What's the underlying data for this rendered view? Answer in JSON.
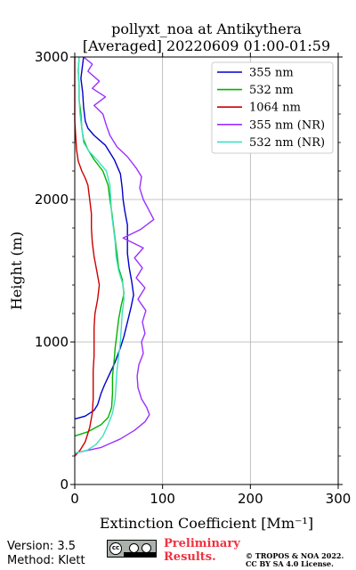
{
  "chart_data": {
    "type": "line",
    "title": "pollyxt_noa at Antikythera",
    "subtitle": "[Averaged] 20220609 01:00-01:59",
    "xlabel": "Extinction Coefficient [Mm⁻¹]",
    "ylabel": "Height (m)",
    "xlim": [
      0,
      300
    ],
    "ylim": [
      0,
      3000
    ],
    "xticks": [
      "0",
      "100",
      "200",
      "300"
    ],
    "yticks": [
      "0",
      "1000",
      "2000",
      "3000"
    ],
    "grid": true,
    "legend_position": "top-right",
    "series": [
      {
        "name": "355 nm",
        "color": "#0000cc",
        "points": [
          [
            0,
            460
          ],
          [
            12,
            480
          ],
          [
            22,
            520
          ],
          [
            26,
            560
          ],
          [
            30,
            640
          ],
          [
            34,
            700
          ],
          [
            40,
            780
          ],
          [
            46,
            860
          ],
          [
            52,
            960
          ],
          [
            56,
            1040
          ],
          [
            60,
            1140
          ],
          [
            64,
            1240
          ],
          [
            67,
            1330
          ],
          [
            65,
            1420
          ],
          [
            62,
            1520
          ],
          [
            60,
            1620
          ],
          [
            60,
            1720
          ],
          [
            60,
            1820
          ],
          [
            57,
            1920
          ],
          [
            55,
            2000
          ],
          [
            54,
            2080
          ],
          [
            52,
            2180
          ],
          [
            45,
            2280
          ],
          [
            35,
            2380
          ],
          [
            22,
            2450
          ],
          [
            15,
            2500
          ],
          [
            12,
            2550
          ],
          [
            10,
            2650
          ],
          [
            9,
            2750
          ],
          [
            7,
            2850
          ],
          [
            9,
            2950
          ],
          [
            10,
            3000
          ]
        ]
      },
      {
        "name": "532 nm",
        "color": "#00b300",
        "points": [
          [
            0,
            340
          ],
          [
            15,
            370
          ],
          [
            30,
            420
          ],
          [
            38,
            470
          ],
          [
            42,
            540
          ],
          [
            43,
            640
          ],
          [
            43,
            760
          ],
          [
            45,
            880
          ],
          [
            46,
            960
          ],
          [
            48,
            1060
          ],
          [
            50,
            1160
          ],
          [
            53,
            1260
          ],
          [
            56,
            1340
          ],
          [
            54,
            1440
          ],
          [
            50,
            1520
          ],
          [
            48,
            1620
          ],
          [
            46,
            1720
          ],
          [
            44,
            1820
          ],
          [
            42,
            1920
          ],
          [
            40,
            2000
          ],
          [
            38,
            2100
          ],
          [
            32,
            2200
          ],
          [
            22,
            2280
          ],
          [
            15,
            2350
          ],
          [
            10,
            2420
          ],
          [
            8,
            2500
          ],
          [
            7,
            2600
          ],
          [
            5,
            2700
          ],
          [
            5,
            2800
          ],
          [
            4,
            2900
          ],
          [
            5,
            3000
          ]
        ]
      },
      {
        "name": "1064 nm",
        "color": "#cc0000",
        "points": [
          [
            0,
            200
          ],
          [
            6,
            240
          ],
          [
            12,
            300
          ],
          [
            17,
            400
          ],
          [
            20,
            500
          ],
          [
            21,
            600
          ],
          [
            21,
            700
          ],
          [
            21,
            800
          ],
          [
            22,
            900
          ],
          [
            22,
            1000
          ],
          [
            22,
            1100
          ],
          [
            23,
            1200
          ],
          [
            26,
            1300
          ],
          [
            28,
            1400
          ],
          [
            25,
            1500
          ],
          [
            22,
            1600
          ],
          [
            20,
            1700
          ],
          [
            19,
            1800
          ],
          [
            19,
            1900
          ],
          [
            17,
            2000
          ],
          [
            15,
            2100
          ],
          [
            12,
            2150
          ],
          [
            8,
            2200
          ],
          [
            4,
            2270
          ],
          [
            2,
            2350
          ],
          [
            1,
            2450
          ],
          [
            0,
            2550
          ],
          [
            0,
            2700
          ],
          [
            0,
            2850
          ],
          [
            0,
            3000
          ]
        ]
      },
      {
        "name": "355 nm (NR)",
        "color": "#9b30ff",
        "points": [
          [
            0,
            220
          ],
          [
            30,
            260
          ],
          [
            52,
            320
          ],
          [
            68,
            380
          ],
          [
            80,
            440
          ],
          [
            85,
            490
          ],
          [
            82,
            540
          ],
          [
            76,
            600
          ],
          [
            72,
            680
          ],
          [
            71,
            760
          ],
          [
            73,
            840
          ],
          [
            78,
            920
          ],
          [
            76,
            1000
          ],
          [
            80,
            1060
          ],
          [
            77,
            1140
          ],
          [
            81,
            1220
          ],
          [
            72,
            1300
          ],
          [
            80,
            1380
          ],
          [
            70,
            1450
          ],
          [
            77,
            1520
          ],
          [
            68,
            1590
          ],
          [
            78,
            1660
          ],
          [
            55,
            1730
          ],
          [
            75,
            1790
          ],
          [
            90,
            1860
          ],
          [
            84,
            1930
          ],
          [
            78,
            2000
          ],
          [
            74,
            2080
          ],
          [
            76,
            2160
          ],
          [
            70,
            2220
          ],
          [
            60,
            2300
          ],
          [
            48,
            2370
          ],
          [
            40,
            2450
          ],
          [
            36,
            2520
          ],
          [
            32,
            2600
          ],
          [
            22,
            2660
          ],
          [
            35,
            2720
          ],
          [
            20,
            2780
          ],
          [
            28,
            2830
          ],
          [
            15,
            2900
          ],
          [
            20,
            2950
          ],
          [
            10,
            3000
          ]
        ]
      },
      {
        "name": "532 nm (NR)",
        "color": "#40e0c0",
        "points": [
          [
            0,
            220
          ],
          [
            14,
            240
          ],
          [
            24,
            280
          ],
          [
            32,
            340
          ],
          [
            38,
            420
          ],
          [
            43,
            500
          ],
          [
            46,
            600
          ],
          [
            47,
            700
          ],
          [
            48,
            800
          ],
          [
            50,
            900
          ],
          [
            52,
            1000
          ],
          [
            53,
            1100
          ],
          [
            54,
            1200
          ],
          [
            56,
            1300
          ],
          [
            55,
            1400
          ],
          [
            50,
            1500
          ],
          [
            47,
            1600
          ],
          [
            46,
            1700
          ],
          [
            44,
            1800
          ],
          [
            42,
            1900
          ],
          [
            41,
            2000
          ],
          [
            40,
            2100
          ],
          [
            36,
            2200
          ],
          [
            25,
            2280
          ],
          [
            16,
            2340
          ],
          [
            10,
            2400
          ],
          [
            8,
            2500
          ],
          [
            6,
            2600
          ],
          [
            5,
            2700
          ],
          [
            5,
            2800
          ],
          [
            4,
            2900
          ],
          [
            5,
            3000
          ]
        ]
      }
    ]
  },
  "footer": {
    "version": "Version: 3.5",
    "method": "Method: Klett",
    "prelim_line1": "Preliminary",
    "prelim_line2": "Results.",
    "copyright_line1": "© TROPOS & NOA 2022.",
    "copyright_line2": "CC BY SA 4.0 License.",
    "license_badge": "cc-by-sa-icon"
  }
}
